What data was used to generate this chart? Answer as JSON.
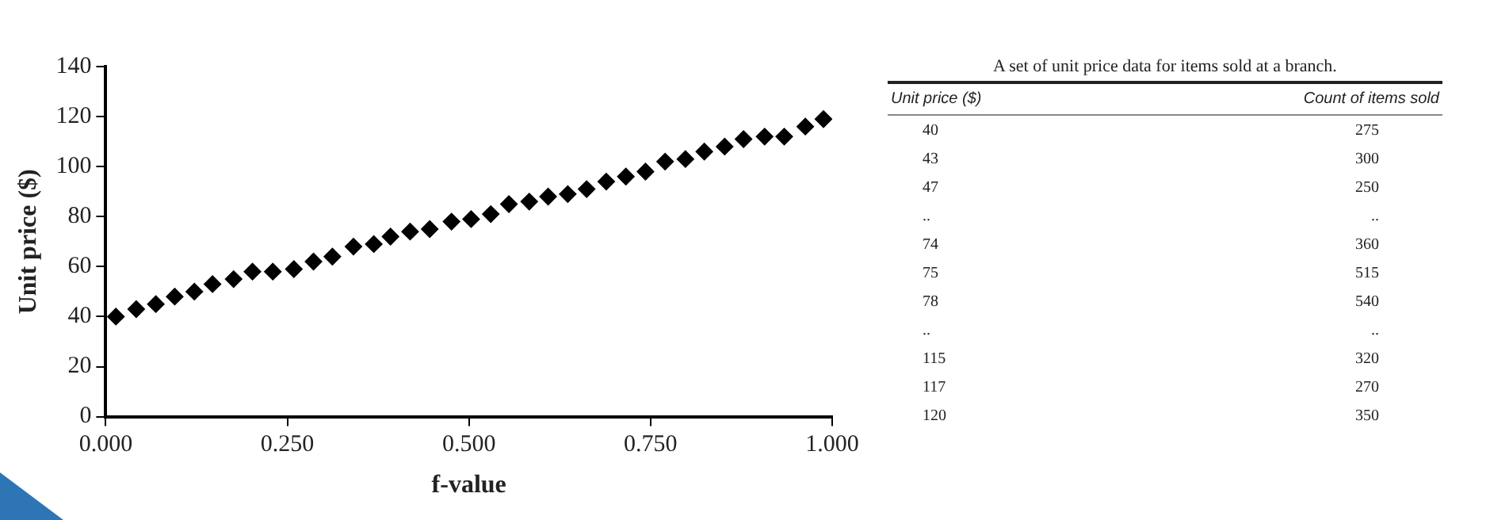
{
  "chart_data": [
    {
      "type": "scatter",
      "xlabel": "f-value",
      "ylabel": "Unit price ($)",
      "marker": "diamond",
      "grid": false,
      "legend": false,
      "xlim": [
        0,
        1
      ],
      "xticks": [
        {
          "value": 0,
          "label": "0.000"
        },
        {
          "value": 0.25,
          "label": "0.250"
        },
        {
          "value": 0.5,
          "label": "0.500"
        },
        {
          "value": 0.75,
          "label": "0.750"
        },
        {
          "value": 1,
          "label": "1.000"
        }
      ],
      "ylim": [
        0,
        140
      ],
      "yticks": [
        0,
        20,
        40,
        60,
        80,
        100,
        120,
        140
      ],
      "series": [
        {
          "color": "#000000",
          "x": [
            0.014,
            0.042,
            0.069,
            0.095,
            0.122,
            0.147,
            0.176,
            0.202,
            0.23,
            0.259,
            0.286,
            0.312,
            0.341,
            0.369,
            0.392,
            0.419,
            0.446,
            0.476,
            0.503,
            0.53,
            0.555,
            0.583,
            0.609,
            0.636,
            0.662,
            0.689,
            0.716,
            0.743,
            0.77,
            0.798,
            0.824,
            0.852,
            0.878,
            0.907,
            0.934,
            0.963,
            0.988
          ],
          "values": [
            40,
            43,
            45,
            48,
            50,
            53,
            55,
            58,
            58,
            59,
            62,
            64,
            68,
            69,
            72,
            74,
            75,
            78,
            79,
            81,
            85,
            86,
            88,
            89,
            91,
            94,
            96,
            98,
            102,
            103,
            106,
            108,
            111,
            112,
            112,
            116,
            119
          ]
        }
      ]
    },
    {
      "type": "other",
      "title": "A set of unit price data for items sold at a branch.",
      "xlabel": "Unit price ($)",
      "ylabel": "Count of items sold",
      "categories": [
        "40",
        "43",
        "47",
        "..",
        "74",
        "75",
        "78",
        "..",
        "115",
        "117",
        "120"
      ],
      "value_labels": [
        "275",
        "300",
        "250",
        "..",
        "360",
        "515",
        "540",
        "..",
        "320",
        "270",
        "350"
      ]
    }
  ]
}
